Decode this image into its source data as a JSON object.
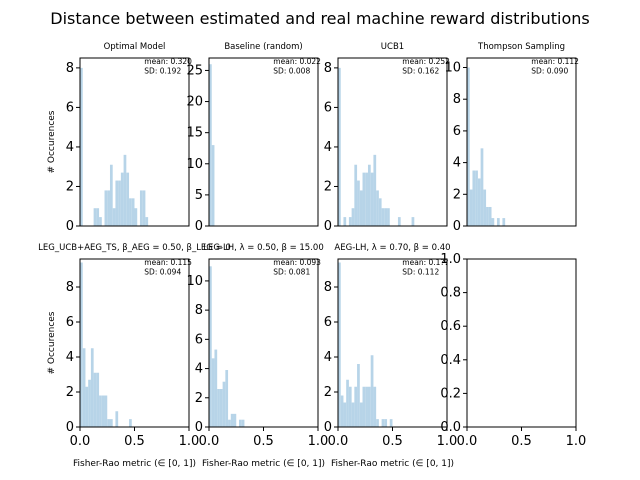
{
  "figure_title": "Distance between estimated and real machine reward distributions",
  "chart_data": [
    {
      "type": "histogram",
      "title": "Optimal Model",
      "ylabel": "# Occurences",
      "xlabel": "",
      "xlim": [
        0,
        1
      ],
      "ylim": [
        0,
        8.5
      ],
      "yticks": [
        "0",
        "2",
        "4",
        "6",
        "8"
      ],
      "xticks": [],
      "bin_width": 0.025,
      "stats": [
        "mean: 0.320",
        "SD: 0.192"
      ],
      "bars": [
        {
          "x": 0.0,
          "y": 8.0
        },
        {
          "x": 0.125,
          "y": 0.9
        },
        {
          "x": 0.15,
          "y": 0.9
        },
        {
          "x": 0.175,
          "y": 0.45
        },
        {
          "x": 0.225,
          "y": 1.8
        },
        {
          "x": 0.25,
          "y": 1.8
        },
        {
          "x": 0.275,
          "y": 3.1
        },
        {
          "x": 0.3,
          "y": 0.9
        },
        {
          "x": 0.325,
          "y": 2.3
        },
        {
          "x": 0.35,
          "y": 2.3
        },
        {
          "x": 0.375,
          "y": 2.7
        },
        {
          "x": 0.4,
          "y": 3.6
        },
        {
          "x": 0.425,
          "y": 2.7
        },
        {
          "x": 0.45,
          "y": 1.4
        },
        {
          "x": 0.475,
          "y": 1.4
        },
        {
          "x": 0.5,
          "y": 0.9
        },
        {
          "x": 0.55,
          "y": 1.8
        },
        {
          "x": 0.575,
          "y": 1.8
        },
        {
          "x": 0.6,
          "y": 0.45
        }
      ]
    },
    {
      "type": "histogram",
      "title": "Baseline (random)",
      "ylabel": "",
      "xlabel": "",
      "xlim": [
        0,
        1
      ],
      "ylim": [
        0,
        27
      ],
      "yticks": [
        "0",
        "5",
        "10",
        "15",
        "20",
        "25"
      ],
      "xticks": [],
      "bin_width": 0.025,
      "stats": [
        "mean: 0.022",
        "SD: 0.008"
      ],
      "bars": [
        {
          "x": 0.0,
          "y": 26.0
        },
        {
          "x": 0.025,
          "y": 13.0
        }
      ]
    },
    {
      "type": "histogram",
      "title": "UCB1",
      "ylabel": "",
      "xlabel": "",
      "xlim": [
        0,
        1
      ],
      "ylim": [
        0,
        8.5
      ],
      "yticks": [
        "0",
        "2",
        "4",
        "6",
        "8"
      ],
      "xticks": [],
      "bin_width": 0.025,
      "stats": [
        "mean: 0.252",
        "SD: 0.162"
      ],
      "bars": [
        {
          "x": 0.0,
          "y": 8.0
        },
        {
          "x": 0.05,
          "y": 0.45
        },
        {
          "x": 0.1,
          "y": 0.45
        },
        {
          "x": 0.125,
          "y": 0.9
        },
        {
          "x": 0.15,
          "y": 3.1
        },
        {
          "x": 0.175,
          "y": 2.3
        },
        {
          "x": 0.2,
          "y": 1.8
        },
        {
          "x": 0.225,
          "y": 2.7
        },
        {
          "x": 0.25,
          "y": 2.7
        },
        {
          "x": 0.275,
          "y": 3.1
        },
        {
          "x": 0.3,
          "y": 2.7
        },
        {
          "x": 0.325,
          "y": 3.6
        },
        {
          "x": 0.35,
          "y": 1.8
        },
        {
          "x": 0.375,
          "y": 1.4
        },
        {
          "x": 0.4,
          "y": 0.9
        },
        {
          "x": 0.425,
          "y": 0.9
        },
        {
          "x": 0.45,
          "y": 0.9
        },
        {
          "x": 0.55,
          "y": 0.45
        },
        {
          "x": 0.675,
          "y": 0.45
        }
      ]
    },
    {
      "type": "histogram",
      "title": "Thompson Sampling",
      "ylabel": "",
      "xlabel": "",
      "xlim": [
        0,
        1
      ],
      "ylim": [
        0,
        10.6
      ],
      "yticks": [
        "0",
        "2",
        "4",
        "6",
        "8",
        "10"
      ],
      "xticks": [],
      "bin_width": 0.025,
      "stats": [
        "mean: 0.112",
        "SD: 0.090"
      ],
      "bars": [
        {
          "x": 0.0,
          "y": 10.0
        },
        {
          "x": 0.025,
          "y": 2.3
        },
        {
          "x": 0.05,
          "y": 3.5
        },
        {
          "x": 0.075,
          "y": 3.5
        },
        {
          "x": 0.1,
          "y": 3.0
        },
        {
          "x": 0.125,
          "y": 4.9
        },
        {
          "x": 0.15,
          "y": 2.3
        },
        {
          "x": 0.175,
          "y": 1.2
        },
        {
          "x": 0.2,
          "y": 1.2
        },
        {
          "x": 0.225,
          "y": 0.5
        },
        {
          "x": 0.275,
          "y": 0.5
        },
        {
          "x": 0.325,
          "y": 0.5
        }
      ]
    },
    {
      "type": "histogram",
      "title": "LEG_UCB+AEG_TS, β_AEG = 0.50, β_LEG = 0",
      "ylabel": "# Occurences",
      "xlabel": "Fisher-Rao metric (∈ [0, 1])",
      "xlim": [
        0,
        1
      ],
      "ylim": [
        0,
        9.6
      ],
      "yticks": [
        "0",
        "2",
        "4",
        "6",
        "8"
      ],
      "xticks": [
        "0.0",
        "0.5",
        "1.0"
      ],
      "bin_width": 0.025,
      "stats": [
        "mean: 0.115",
        "SD: 0.094"
      ],
      "bars": [
        {
          "x": 0.0,
          "y": 9.4
        },
        {
          "x": 0.025,
          "y": 4.5
        },
        {
          "x": 0.05,
          "y": 2.3
        },
        {
          "x": 0.075,
          "y": 2.7
        },
        {
          "x": 0.1,
          "y": 4.5
        },
        {
          "x": 0.125,
          "y": 3.1
        },
        {
          "x": 0.15,
          "y": 3.1
        },
        {
          "x": 0.175,
          "y": 1.8
        },
        {
          "x": 0.2,
          "y": 1.8
        },
        {
          "x": 0.225,
          "y": 1.8
        },
        {
          "x": 0.25,
          "y": 0.45
        },
        {
          "x": 0.275,
          "y": 0.45
        },
        {
          "x": 0.325,
          "y": 0.9
        },
        {
          "x": 0.45,
          "y": 0.45
        }
      ]
    },
    {
      "type": "histogram",
      "title": "LEG-LH, λ = 0.50, β = 15.00",
      "ylabel": "",
      "xlabel": "Fisher-Rao metric (∈ [0, 1])",
      "xlim": [
        0,
        1
      ],
      "ylim": [
        0,
        11.5
      ],
      "yticks": [
        "0",
        "2",
        "4",
        "6",
        "8",
        "10"
      ],
      "xticks": [
        "0.0",
        "0.5",
        "1.0"
      ],
      "bin_width": 0.025,
      "stats": [
        "mean: 0.093",
        "SD: 0.081"
      ],
      "bars": [
        {
          "x": 0.0,
          "y": 11.0
        },
        {
          "x": 0.025,
          "y": 4.7
        },
        {
          "x": 0.05,
          "y": 5.3
        },
        {
          "x": 0.075,
          "y": 2.6
        },
        {
          "x": 0.1,
          "y": 2.6
        },
        {
          "x": 0.125,
          "y": 3.1
        },
        {
          "x": 0.15,
          "y": 3.9
        },
        {
          "x": 0.175,
          "y": 0.5
        },
        {
          "x": 0.2,
          "y": 0.9
        },
        {
          "x": 0.225,
          "y": 0.9
        },
        {
          "x": 0.275,
          "y": 0.5
        },
        {
          "x": 0.3,
          "y": 0.5
        }
      ]
    },
    {
      "type": "histogram",
      "title": "AEG-LH, λ = 0.70, β = 0.40",
      "ylabel": "",
      "xlabel": "Fisher-Rao metric (∈ [0, 1])",
      "xlim": [
        0,
        1
      ],
      "ylim": [
        0,
        9.6
      ],
      "yticks": [
        "0",
        "2",
        "4",
        "6",
        "8"
      ],
      "xticks": [
        "0.0",
        "0.5",
        "1.0"
      ],
      "bin_width": 0.025,
      "stats": [
        "mean: 0.1??",
        "SD: 0.112"
      ],
      "bars": [
        {
          "x": 0.0,
          "y": 9.4
        },
        {
          "x": 0.025,
          "y": 1.8
        },
        {
          "x": 0.05,
          "y": 1.4
        },
        {
          "x": 0.075,
          "y": 2.7
        },
        {
          "x": 0.1,
          "y": 2.3
        },
        {
          "x": 0.125,
          "y": 1.4
        },
        {
          "x": 0.15,
          "y": 2.3
        },
        {
          "x": 0.175,
          "y": 3.6
        },
        {
          "x": 0.2,
          "y": 1.4
        },
        {
          "x": 0.225,
          "y": 2.3
        },
        {
          "x": 0.25,
          "y": 2.3
        },
        {
          "x": 0.275,
          "y": 2.3
        },
        {
          "x": 0.3,
          "y": 4.1
        },
        {
          "x": 0.325,
          "y": 2.3
        },
        {
          "x": 0.35,
          "y": 0.45
        },
        {
          "x": 0.4,
          "y": 0.45
        },
        {
          "x": 0.425,
          "y": 0.45
        },
        {
          "x": 0.475,
          "y": 0.45
        }
      ]
    },
    {
      "type": "histogram",
      "title": "",
      "ylabel": "",
      "xlabel": "",
      "xlim": [
        0,
        1
      ],
      "ylim": [
        0,
        1
      ],
      "yticks": [
        "0.0",
        "0.2",
        "0.4",
        "0.6",
        "0.8",
        "1.0"
      ],
      "xticks": [
        "0.0",
        "0.5",
        "1.0"
      ],
      "bin_width": 0.025,
      "stats": [],
      "bars": []
    }
  ],
  "colors": {
    "bar": "#b7d4e8",
    "axes": "#000000",
    "background": "#ffffff"
  }
}
